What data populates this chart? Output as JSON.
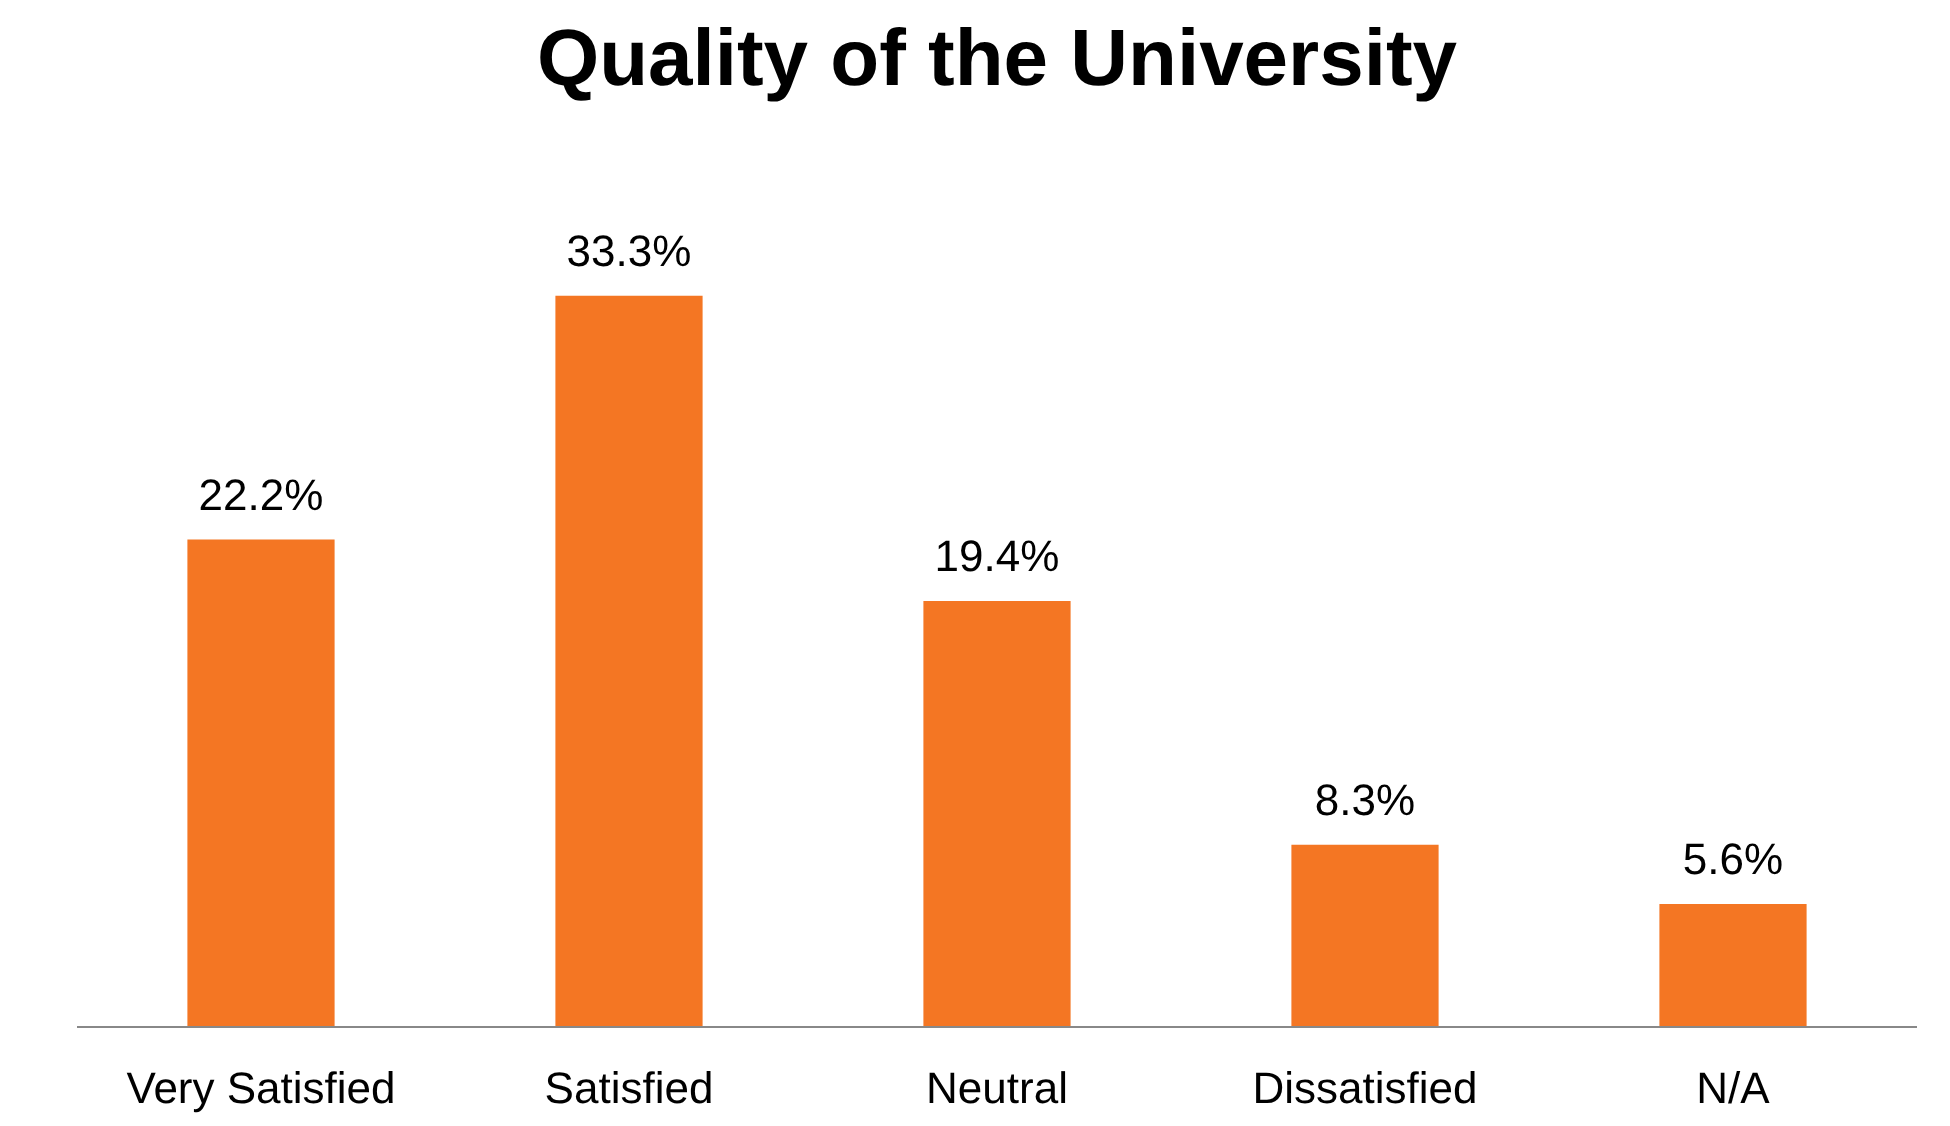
{
  "chart_data": {
    "type": "bar",
    "title": "Quality of the University",
    "categories": [
      "Very Satisfied",
      "Satisfied",
      "Neutral",
      "Dissatisfied",
      "N/A"
    ],
    "values": [
      22.2,
      33.3,
      19.4,
      8.3,
      5.6
    ],
    "value_labels": [
      "22.2%",
      "33.3%",
      "19.4%",
      "8.3%",
      "5.6%"
    ],
    "color": "#f47623"
  }
}
